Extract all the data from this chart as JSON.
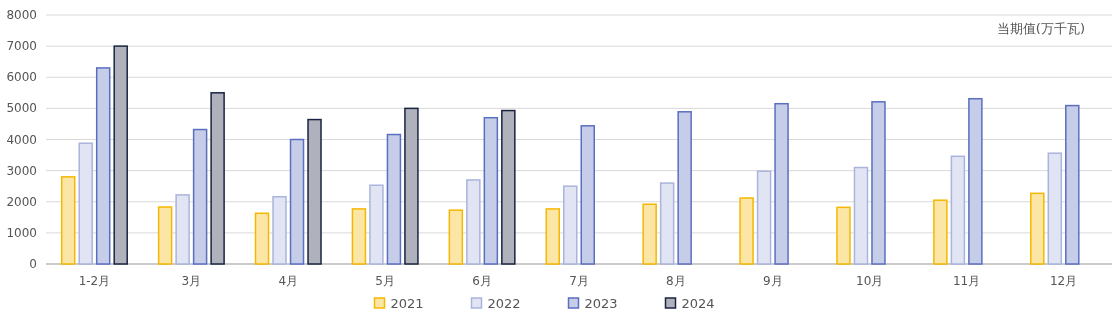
{
  "chart_data": {
    "type": "bar",
    "ylabel": "当期值(万千瓦)",
    "categories": [
      "1-2月",
      "3月",
      "4月",
      "5月",
      "6月",
      "7月",
      "8月",
      "9月",
      "10月",
      "11月",
      "12月"
    ],
    "series": [
      {
        "name": "2021",
        "color": "#f5b800",
        "values": [
          2800,
          1830,
          1630,
          1770,
          1730,
          1770,
          1920,
          2120,
          1820,
          2050,
          2270
        ]
      },
      {
        "name": "2022",
        "color": "#aab4dc",
        "values": [
          3880,
          2220,
          2160,
          2530,
          2700,
          2500,
          2600,
          2980,
          3100,
          3460,
          3560
        ]
      },
      {
        "name": "2023",
        "color": "#5b6fc0",
        "values": [
          6300,
          4320,
          4000,
          4160,
          4700,
          4440,
          4890,
          5150,
          5210,
          5310,
          5090
        ]
      },
      {
        "name": "2024",
        "color": "#1a2440",
        "values": [
          7000,
          5500,
          4640,
          5000,
          4930,
          null,
          null,
          null,
          null,
          null,
          null
        ]
      }
    ],
    "ylim": [
      0,
      8000
    ],
    "yticks": [
      0,
      1000,
      2000,
      3000,
      4000,
      5000,
      6000,
      7000,
      8000
    ],
    "grid": "y",
    "legend": "bottom"
  }
}
